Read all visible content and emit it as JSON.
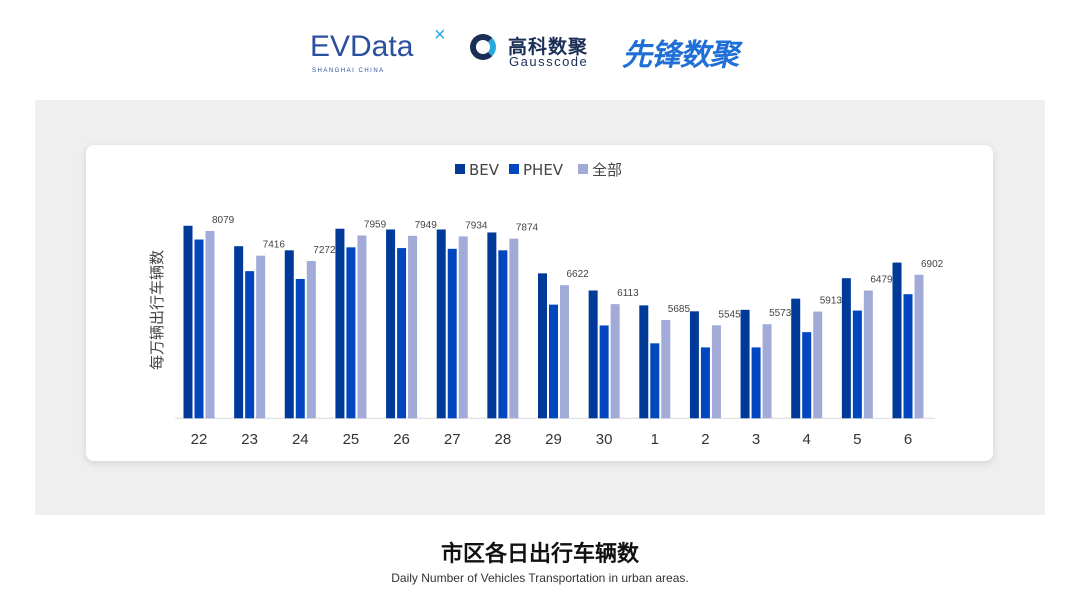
{
  "logos": {
    "evdata": {
      "text": "EVData",
      "mark": "×",
      "sub": "SHANGHAI CHINA"
    },
    "gausscode": {
      "cn": "高科数聚",
      "en": "Gausscode"
    },
    "xianfeng": {
      "text": "先锋数聚"
    }
  },
  "colors": {
    "BEV": "#003a99",
    "PHEV": "#0047bf",
    "all": "#a2aad8",
    "panel": "#efefef"
  },
  "chart_data": {
    "type": "bar",
    "title": "市区各日出行车辆数",
    "subtitle": "Daily Number of Vehicles Transportation in urban areas.",
    "ylabel": "每万辆出行车辆数",
    "xlabel": "",
    "ylim": [
      3000,
      8500
    ],
    "grid": false,
    "legend": "top-center",
    "categories": [
      "22",
      "23",
      "24",
      "25",
      "26",
      "27",
      "28",
      "29",
      "30",
      "1",
      "2",
      "3",
      "4",
      "5",
      "6"
    ],
    "series": [
      {
        "name": "BEV",
        "values": [
          8220,
          7670,
          7560,
          8140,
          8120,
          8120,
          8040,
          6940,
          6480,
          6080,
          5920,
          5960,
          6260,
          6810,
          7230
        ]
      },
      {
        "name": "PHEV",
        "values": [
          7850,
          7000,
          6790,
          7640,
          7620,
          7600,
          7560,
          6100,
          5540,
          5060,
          4950,
          4950,
          5360,
          5940,
          6380
        ]
      },
      {
        "name": "全部",
        "values": [
          8079,
          7416,
          7272,
          7959,
          7949,
          7934,
          7874,
          6622,
          6113,
          5685,
          5545,
          5573,
          5913,
          6479,
          6902
        ],
        "labels": [
          "8079",
          "7416",
          "7272",
          "7959",
          "7949",
          "7934",
          "7874",
          "6622",
          "6113",
          "5685",
          "5545",
          "5573",
          "5913",
          "6479",
          "6902"
        ]
      }
    ]
  }
}
